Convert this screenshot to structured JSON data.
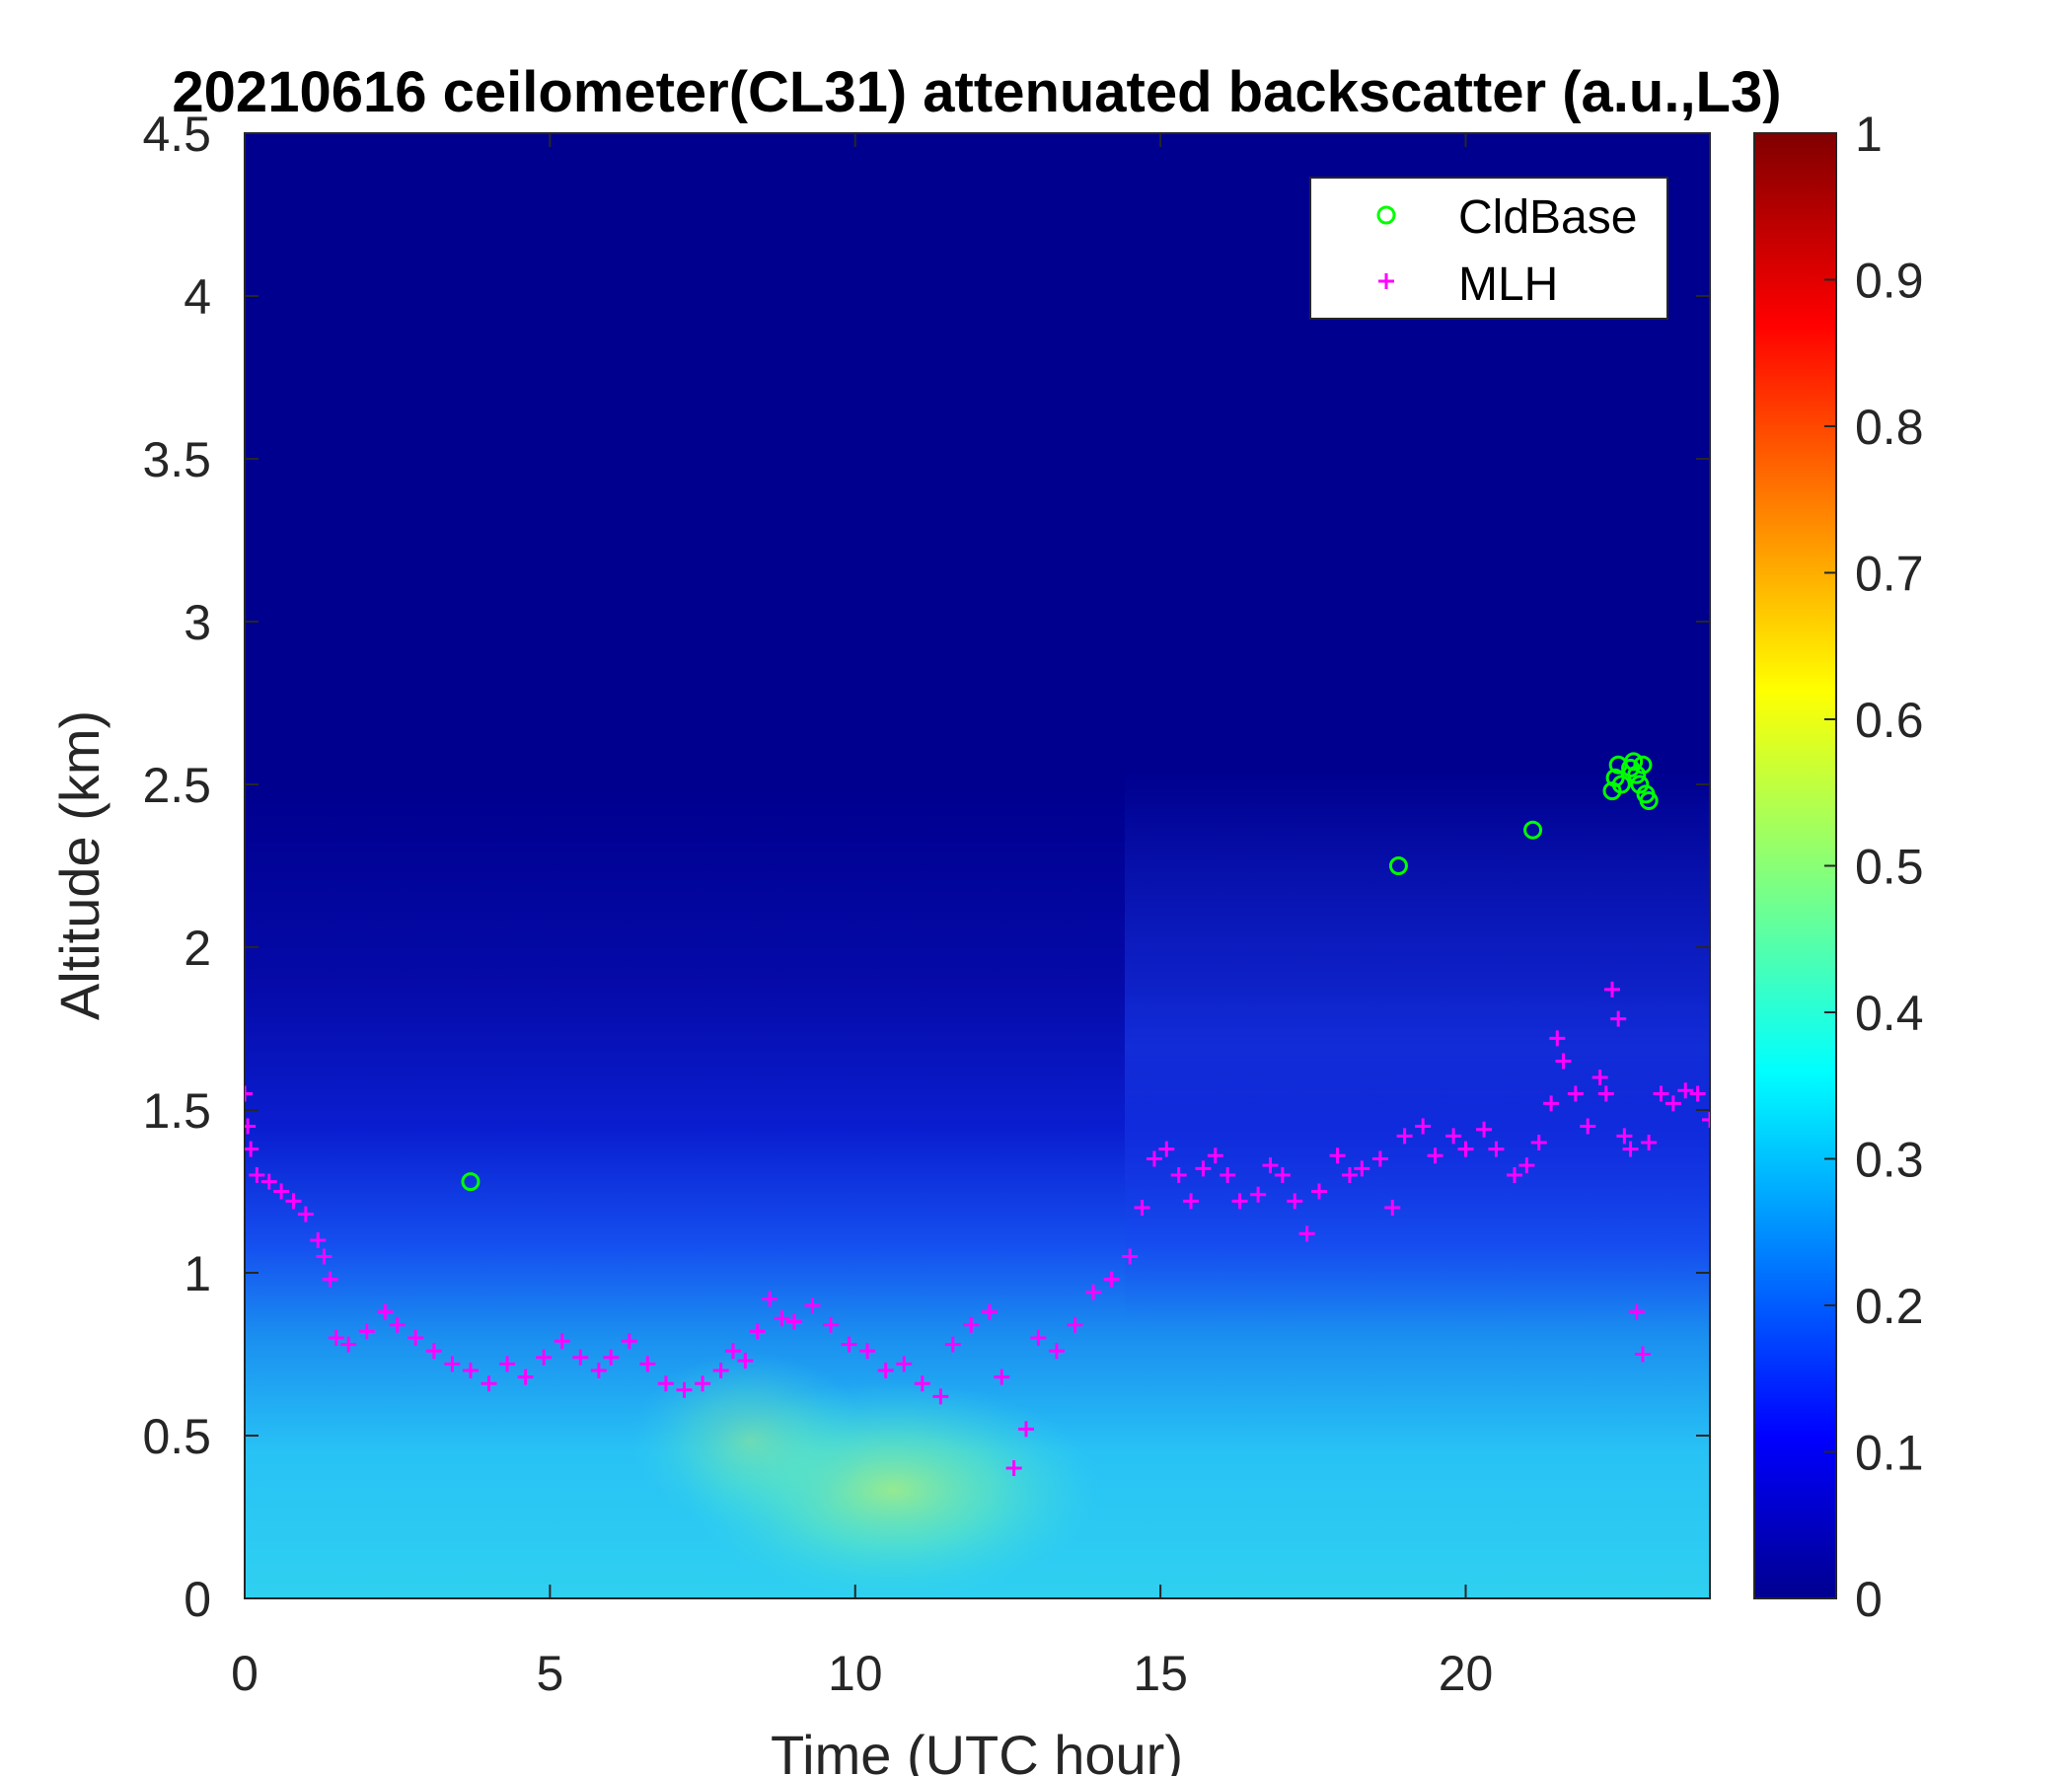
{
  "chart_data": {
    "type": "heatmap",
    "title": "20210616 ceilometer(CL31) attenuated backscatter (a.u.,L3)",
    "xlabel": "Time (UTC hour)",
    "ylabel": "Altitude (km)",
    "xlim": [
      0,
      24
    ],
    "ylim": [
      0,
      4.5
    ],
    "x_ticks": [
      "0",
      "5",
      "10",
      "15",
      "20"
    ],
    "y_ticks": [
      "0",
      "0.5",
      "1",
      "1.5",
      "2",
      "2.5",
      "3",
      "3.5",
      "4",
      "4.5"
    ],
    "colorbar": {
      "colormap": "jet",
      "range": [
        0,
        1
      ],
      "ticks": [
        "0",
        "0.1",
        "0.2",
        "0.3",
        "0.4",
        "0.5",
        "0.6",
        "0.7",
        "0.8",
        "0.9",
        "1"
      ]
    },
    "legend": {
      "placement": "top-right",
      "entries": [
        {
          "label": "CldBase",
          "marker": "circle",
          "color": "#00ff00"
        },
        {
          "label": "MLH",
          "marker": "plus",
          "color": "#ff00ff"
        }
      ]
    },
    "series": [
      {
        "name": "CldBase",
        "points": [
          [
            3.7,
            1.28
          ],
          [
            18.9,
            2.25
          ],
          [
            21.1,
            2.36
          ],
          [
            22.4,
            2.48
          ],
          [
            22.45,
            2.52
          ],
          [
            22.5,
            2.56
          ],
          [
            22.55,
            2.5
          ],
          [
            22.7,
            2.55
          ],
          [
            22.75,
            2.57
          ],
          [
            22.8,
            2.53
          ],
          [
            22.85,
            2.5
          ],
          [
            22.9,
            2.56
          ],
          [
            22.95,
            2.47
          ],
          [
            23.0,
            2.45
          ]
        ]
      },
      {
        "name": "MLH",
        "points": [
          [
            0.0,
            1.55
          ],
          [
            0.05,
            1.45
          ],
          [
            0.1,
            1.38
          ],
          [
            0.2,
            1.3
          ],
          [
            0.4,
            1.28
          ],
          [
            0.6,
            1.25
          ],
          [
            0.8,
            1.22
          ],
          [
            1.0,
            1.18
          ],
          [
            1.2,
            1.1
          ],
          [
            1.3,
            1.05
          ],
          [
            1.4,
            0.98
          ],
          [
            1.5,
            0.8
          ],
          [
            1.7,
            0.78
          ],
          [
            2.0,
            0.82
          ],
          [
            2.3,
            0.88
          ],
          [
            2.5,
            0.84
          ],
          [
            2.8,
            0.8
          ],
          [
            3.1,
            0.76
          ],
          [
            3.4,
            0.72
          ],
          [
            3.7,
            0.7
          ],
          [
            4.0,
            0.66
          ],
          [
            4.3,
            0.72
          ],
          [
            4.6,
            0.68
          ],
          [
            4.9,
            0.74
          ],
          [
            5.2,
            0.79
          ],
          [
            5.5,
            0.74
          ],
          [
            5.8,
            0.7
          ],
          [
            6.0,
            0.74
          ],
          [
            6.3,
            0.79
          ],
          [
            6.6,
            0.72
          ],
          [
            6.9,
            0.66
          ],
          [
            7.2,
            0.64
          ],
          [
            7.5,
            0.66
          ],
          [
            7.8,
            0.7
          ],
          [
            8.0,
            0.76
          ],
          [
            8.2,
            0.73
          ],
          [
            8.4,
            0.82
          ],
          [
            8.6,
            0.92
          ],
          [
            8.8,
            0.86
          ],
          [
            9.0,
            0.85
          ],
          [
            9.3,
            0.9
          ],
          [
            9.6,
            0.84
          ],
          [
            9.9,
            0.78
          ],
          [
            10.2,
            0.76
          ],
          [
            10.5,
            0.7
          ],
          [
            10.8,
            0.72
          ],
          [
            11.1,
            0.66
          ],
          [
            11.4,
            0.62
          ],
          [
            11.6,
            0.78
          ],
          [
            11.9,
            0.84
          ],
          [
            12.2,
            0.88
          ],
          [
            12.4,
            0.68
          ],
          [
            12.6,
            0.4
          ],
          [
            12.8,
            0.52
          ],
          [
            13.0,
            0.8
          ],
          [
            13.3,
            0.76
          ],
          [
            13.6,
            0.84
          ],
          [
            13.9,
            0.94
          ],
          [
            14.2,
            0.98
          ],
          [
            14.5,
            1.05
          ],
          [
            14.7,
            1.2
          ],
          [
            14.9,
            1.35
          ],
          [
            15.1,
            1.38
          ],
          [
            15.3,
            1.3
          ],
          [
            15.5,
            1.22
          ],
          [
            15.7,
            1.32
          ],
          [
            15.9,
            1.36
          ],
          [
            16.1,
            1.3
          ],
          [
            16.3,
            1.22
          ],
          [
            16.6,
            1.24
          ],
          [
            16.8,
            1.33
          ],
          [
            17.0,
            1.3
          ],
          [
            17.2,
            1.22
          ],
          [
            17.4,
            1.12
          ],
          [
            17.6,
            1.25
          ],
          [
            17.9,
            1.36
          ],
          [
            18.1,
            1.3
          ],
          [
            18.3,
            1.32
          ],
          [
            18.6,
            1.35
          ],
          [
            18.8,
            1.2
          ],
          [
            19.0,
            1.42
          ],
          [
            19.3,
            1.45
          ],
          [
            19.5,
            1.36
          ],
          [
            19.8,
            1.42
          ],
          [
            20.0,
            1.38
          ],
          [
            20.3,
            1.44
          ],
          [
            20.5,
            1.38
          ],
          [
            20.8,
            1.3
          ],
          [
            21.0,
            1.33
          ],
          [
            21.2,
            1.4
          ],
          [
            21.4,
            1.52
          ],
          [
            21.5,
            1.72
          ],
          [
            21.6,
            1.65
          ],
          [
            21.8,
            1.55
          ],
          [
            22.0,
            1.45
          ],
          [
            22.2,
            1.6
          ],
          [
            22.3,
            1.55
          ],
          [
            22.4,
            1.87
          ],
          [
            22.5,
            1.78
          ],
          [
            22.6,
            1.42
          ],
          [
            22.7,
            1.38
          ],
          [
            22.8,
            0.88
          ],
          [
            22.9,
            0.75
          ],
          [
            23.0,
            1.4
          ],
          [
            23.2,
            1.55
          ],
          [
            23.4,
            1.52
          ],
          [
            23.6,
            1.56
          ],
          [
            23.8,
            1.55
          ],
          [
            24.0,
            1.47
          ]
        ]
      }
    ]
  }
}
